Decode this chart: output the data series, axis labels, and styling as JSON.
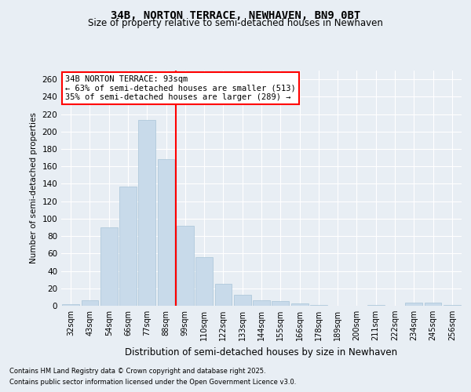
{
  "title": "34B, NORTON TERRACE, NEWHAVEN, BN9 0BT",
  "subtitle": "Size of property relative to semi-detached houses in Newhaven",
  "xlabel": "Distribution of semi-detached houses by size in Newhaven",
  "ylabel": "Number of semi-detached properties",
  "footnote1": "Contains HM Land Registry data © Crown copyright and database right 2025.",
  "footnote2": "Contains public sector information licensed under the Open Government Licence v3.0.",
  "bins": [
    "32sqm",
    "43sqm",
    "54sqm",
    "66sqm",
    "77sqm",
    "88sqm",
    "99sqm",
    "110sqm",
    "122sqm",
    "133sqm",
    "144sqm",
    "155sqm",
    "166sqm",
    "178sqm",
    "189sqm",
    "200sqm",
    "211sqm",
    "222sqm",
    "234sqm",
    "245sqm",
    "256sqm"
  ],
  "values": [
    2,
    6,
    90,
    137,
    213,
    168,
    92,
    56,
    25,
    13,
    6,
    5,
    3,
    1,
    0,
    0,
    1,
    0,
    4,
    4,
    1
  ],
  "bar_color": "#c8daea",
  "bar_edge_color": "#a8c4d8",
  "vline_x_index": 5.5,
  "vline_color": "red",
  "annotation_text": "34B NORTON TERRACE: 93sqm\n← 63% of semi-detached houses are smaller (513)\n35% of semi-detached houses are larger (289) →",
  "annotation_box_color": "white",
  "annotation_box_edge": "red",
  "ylim": [
    0,
    270
  ],
  "yticks": [
    0,
    20,
    40,
    60,
    80,
    100,
    120,
    140,
    160,
    180,
    200,
    220,
    240,
    260
  ],
  "bg_color": "#e8eef4",
  "grid_color": "white",
  "title_fontsize": 10,
  "subtitle_fontsize": 8.5
}
